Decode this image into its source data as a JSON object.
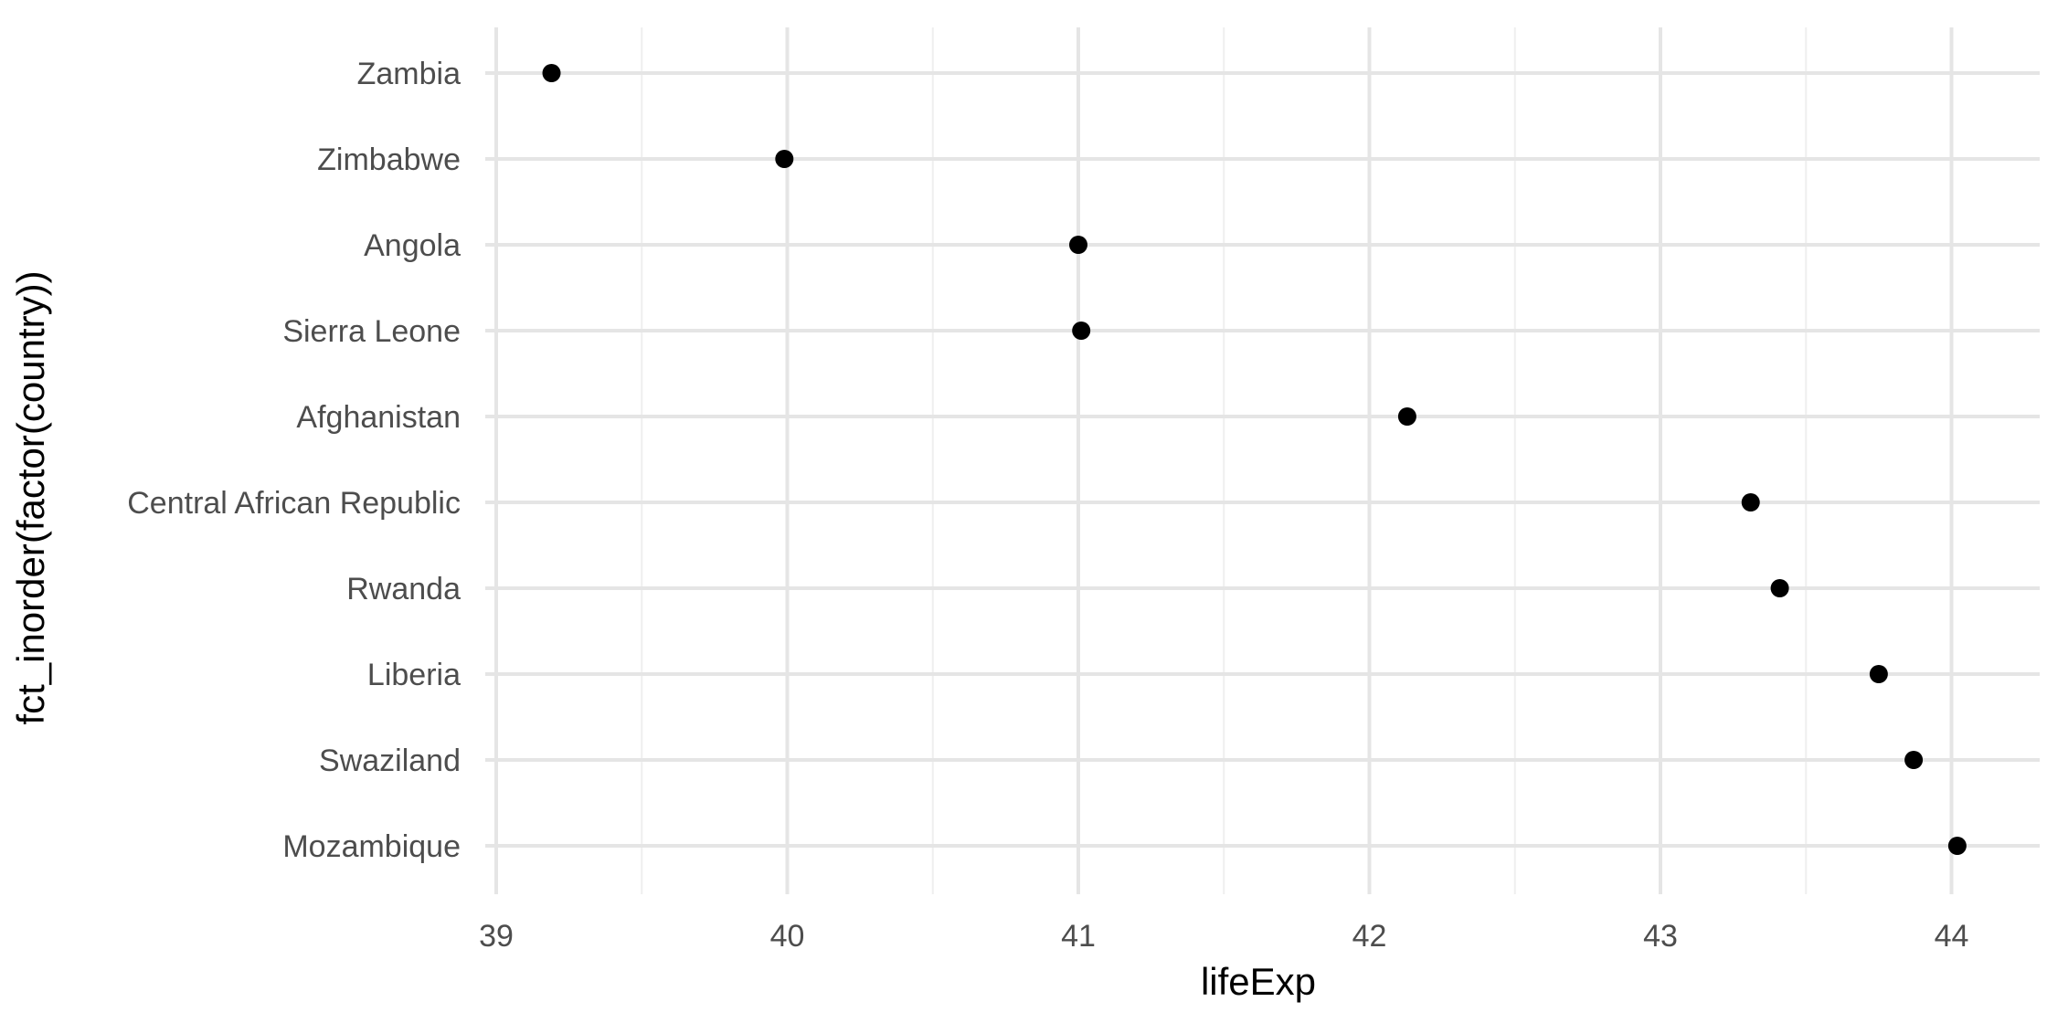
{
  "chart_data": {
    "type": "scatter",
    "xlabel": "lifeExp",
    "ylabel": "fct_inorder(factor(country))",
    "xlim": [
      38.95,
      44.2
    ],
    "x_ticks": [
      39,
      40,
      41,
      42,
      43,
      44
    ],
    "x_minor_ticks": [
      39.5,
      40.5,
      41.5,
      42.5,
      43.5
    ],
    "categories": [
      "Zambia",
      "Zimbabwe",
      "Angola",
      "Sierra Leone",
      "Afghanistan",
      "Central African Republic",
      "Rwanda",
      "Liberia",
      "Swaziland",
      "Mozambique"
    ],
    "values": [
      39.19,
      39.99,
      41.0,
      41.01,
      42.13,
      43.31,
      43.41,
      43.75,
      43.87,
      44.02
    ],
    "grid": true,
    "point_color": "#000000",
    "grid_color": "#e5e5e5"
  }
}
